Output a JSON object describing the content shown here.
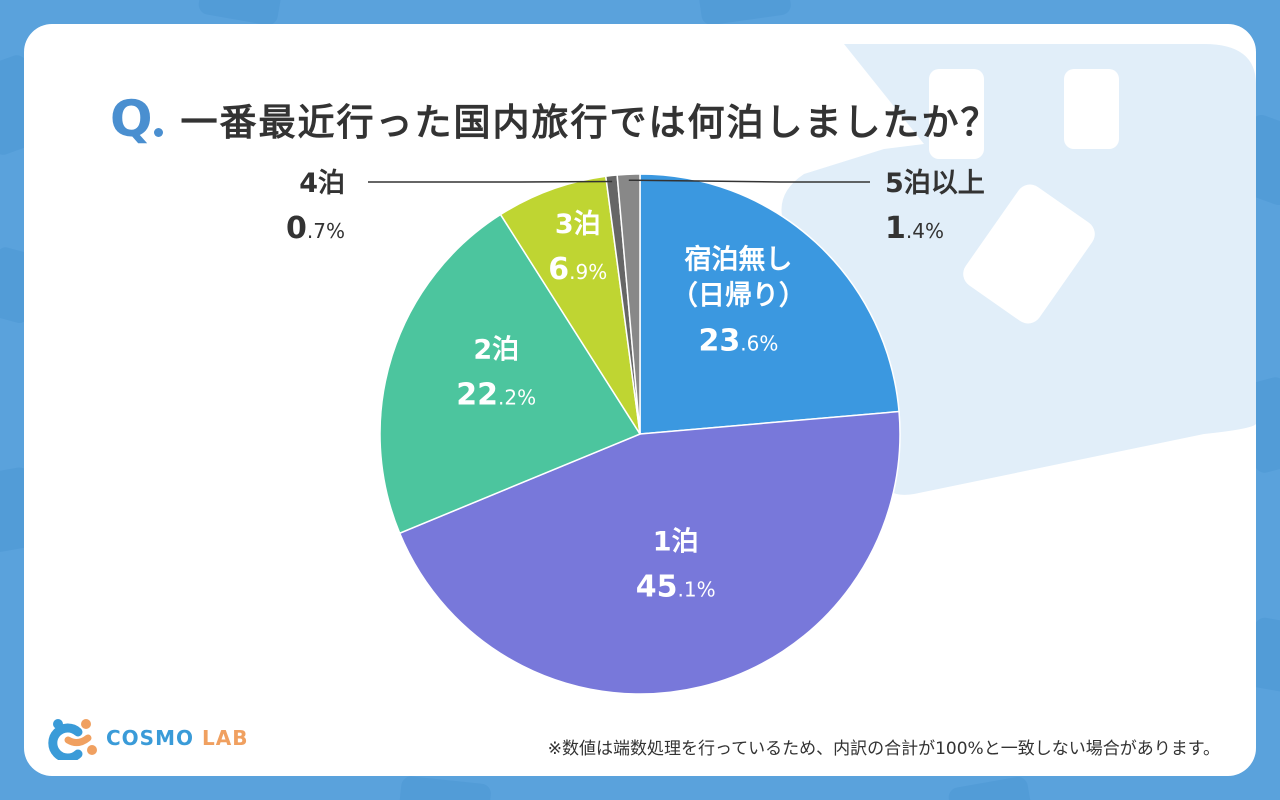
{
  "title": {
    "q": "Q",
    "text": "一番最近行った国内旅行では何泊しましたか？"
  },
  "colors": {
    "background": "#5aa2dc",
    "accent": "#4a8fd0",
    "slice_none": "#3b98e0",
    "slice_1": "#7878da",
    "slice_2": "#4cc59e",
    "slice_3": "#bfd532",
    "slice_4": "#666666",
    "slice_5": "#888888"
  },
  "chart_data": {
    "type": "pie",
    "slices": [
      {
        "name": "宿泊無し",
        "name2": "（日帰り）",
        "value_main": "23",
        "value_dec": ".6%",
        "value": 23.6,
        "color": "#3b98e0"
      },
      {
        "name": "1泊",
        "value_main": "45",
        "value_dec": ".1%",
        "value": 45.1,
        "color": "#7878da"
      },
      {
        "name": "2泊",
        "value_main": "22",
        "value_dec": ".2%",
        "value": 22.2,
        "color": "#4cc59e"
      },
      {
        "name": "3泊",
        "value_main": "6",
        "value_dec": ".9%",
        "value": 6.9,
        "color": "#bfd532"
      },
      {
        "name": "4泊",
        "value_main": "0",
        "value_dec": ".7%",
        "value": 0.7,
        "color": "#666666"
      },
      {
        "name": "5泊以上",
        "value_main": "1",
        "value_dec": ".4%",
        "value": 1.4,
        "color": "#888888"
      }
    ]
  },
  "footer_note": "※数値は端数処理を行っているため、内訳の合計が100%と一致しない場合があります。",
  "logo": {
    "cosmo": "COSMO",
    "lab": "LAB"
  }
}
